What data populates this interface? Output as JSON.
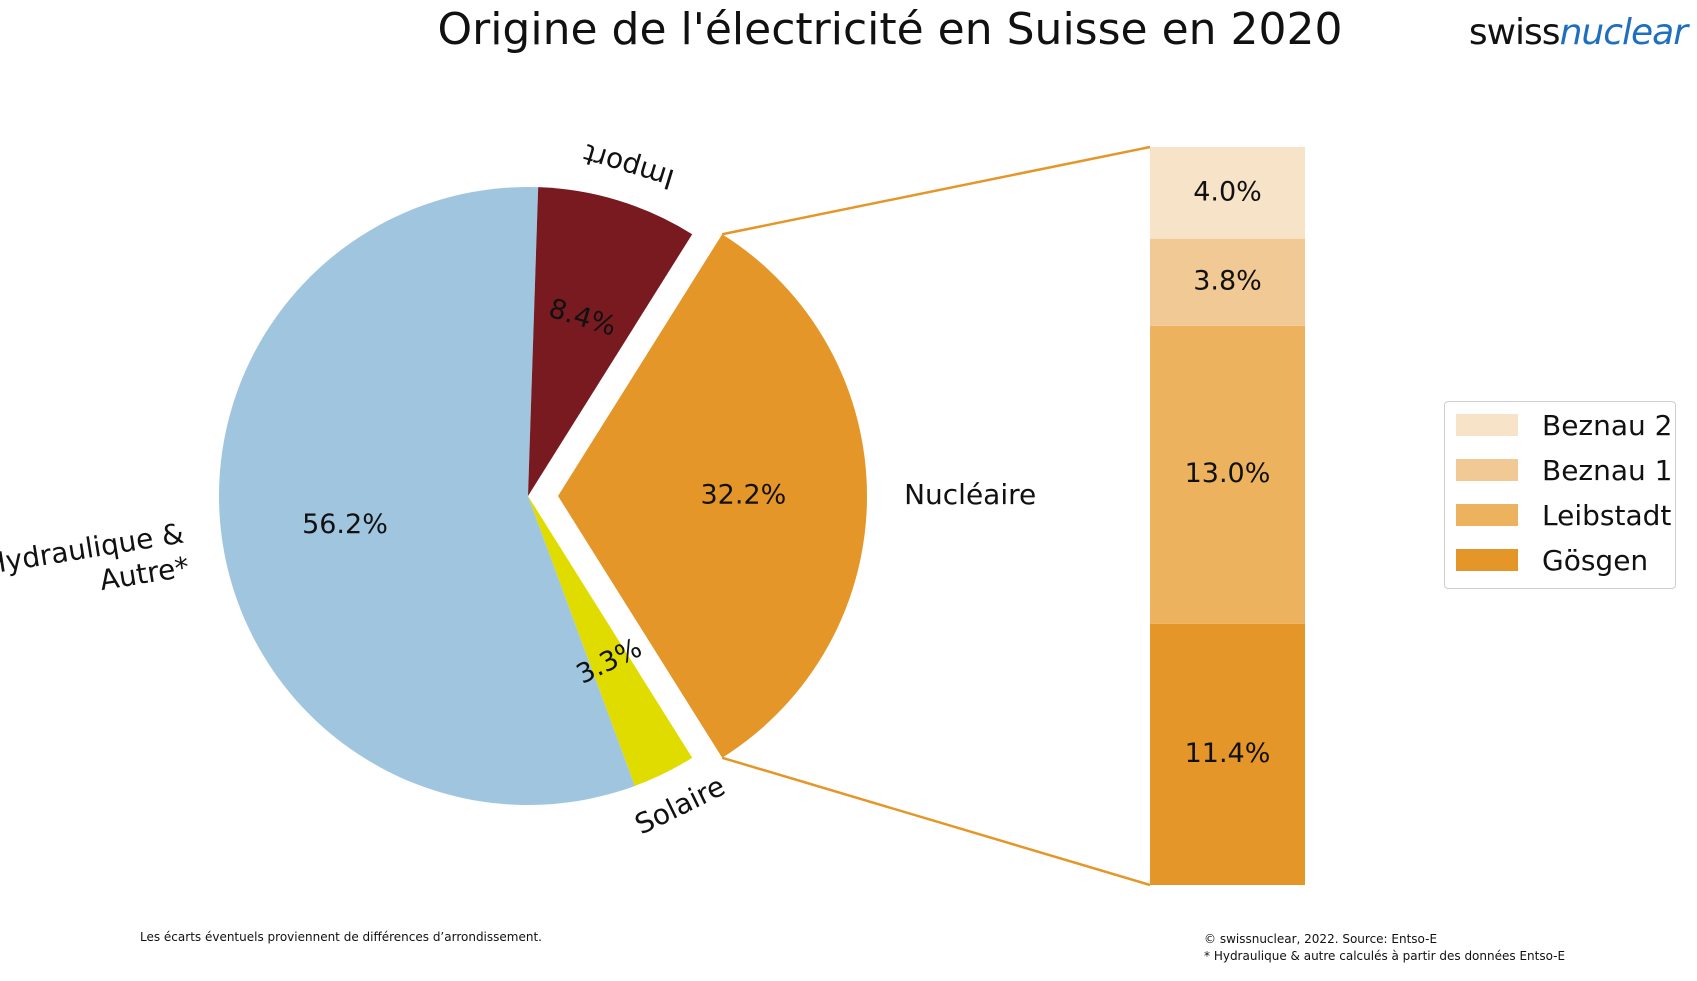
{
  "title": "Origine de l'électricité en Suisse en 2020",
  "logo": {
    "part1": "swiss",
    "part2": "nuclear",
    "color_part2": "#1f6fbf"
  },
  "footnotes": {
    "left": "Les écarts éventuels proviennent de différences d’arrondissement.",
    "right_1": "© swissnuclear, 2022. Source: Entso-E",
    "right_2": "* Hydraulique & autre calculés à partir des données Entso-E"
  },
  "chart_data": [
    {
      "type": "pie",
      "title": "Origine de l'électricité en Suisse en 2020",
      "slices": [
        {
          "label": "Nucléaire",
          "value": 32.2,
          "display": "32.2%",
          "color": "#e59628",
          "exploded": true
        },
        {
          "label": "Solaire",
          "value": 3.3,
          "display": "3.3%",
          "color": "#e0dc00"
        },
        {
          "label": "Hydraulique &\nAutre*",
          "value": 56.2,
          "display": "56.2%",
          "color": "#a0c6df"
        },
        {
          "label": "Import",
          "value": 8.4,
          "display": "8.4%",
          "color": "#781a20"
        }
      ]
    },
    {
      "type": "bar",
      "stacked": true,
      "breakdown_of": "Nucléaire",
      "series": [
        {
          "name": "Gösgen",
          "value": 11.4,
          "display": "11.4%",
          "color": "#e59628"
        },
        {
          "name": "Leibstadt",
          "value": 13.0,
          "display": "13.0%",
          "color": "#ecb25e"
        },
        {
          "name": "Beznau 1",
          "value": 3.8,
          "display": "3.8%",
          "color": "#f1c994"
        },
        {
          "name": "Beznau 2",
          "value": 4.0,
          "display": "4.0%",
          "color": "#f7e3c7"
        }
      ],
      "legend_position": "right",
      "legend_order": [
        "Beznau 2",
        "Beznau 1",
        "Leibstadt",
        "Gösgen"
      ]
    }
  ]
}
